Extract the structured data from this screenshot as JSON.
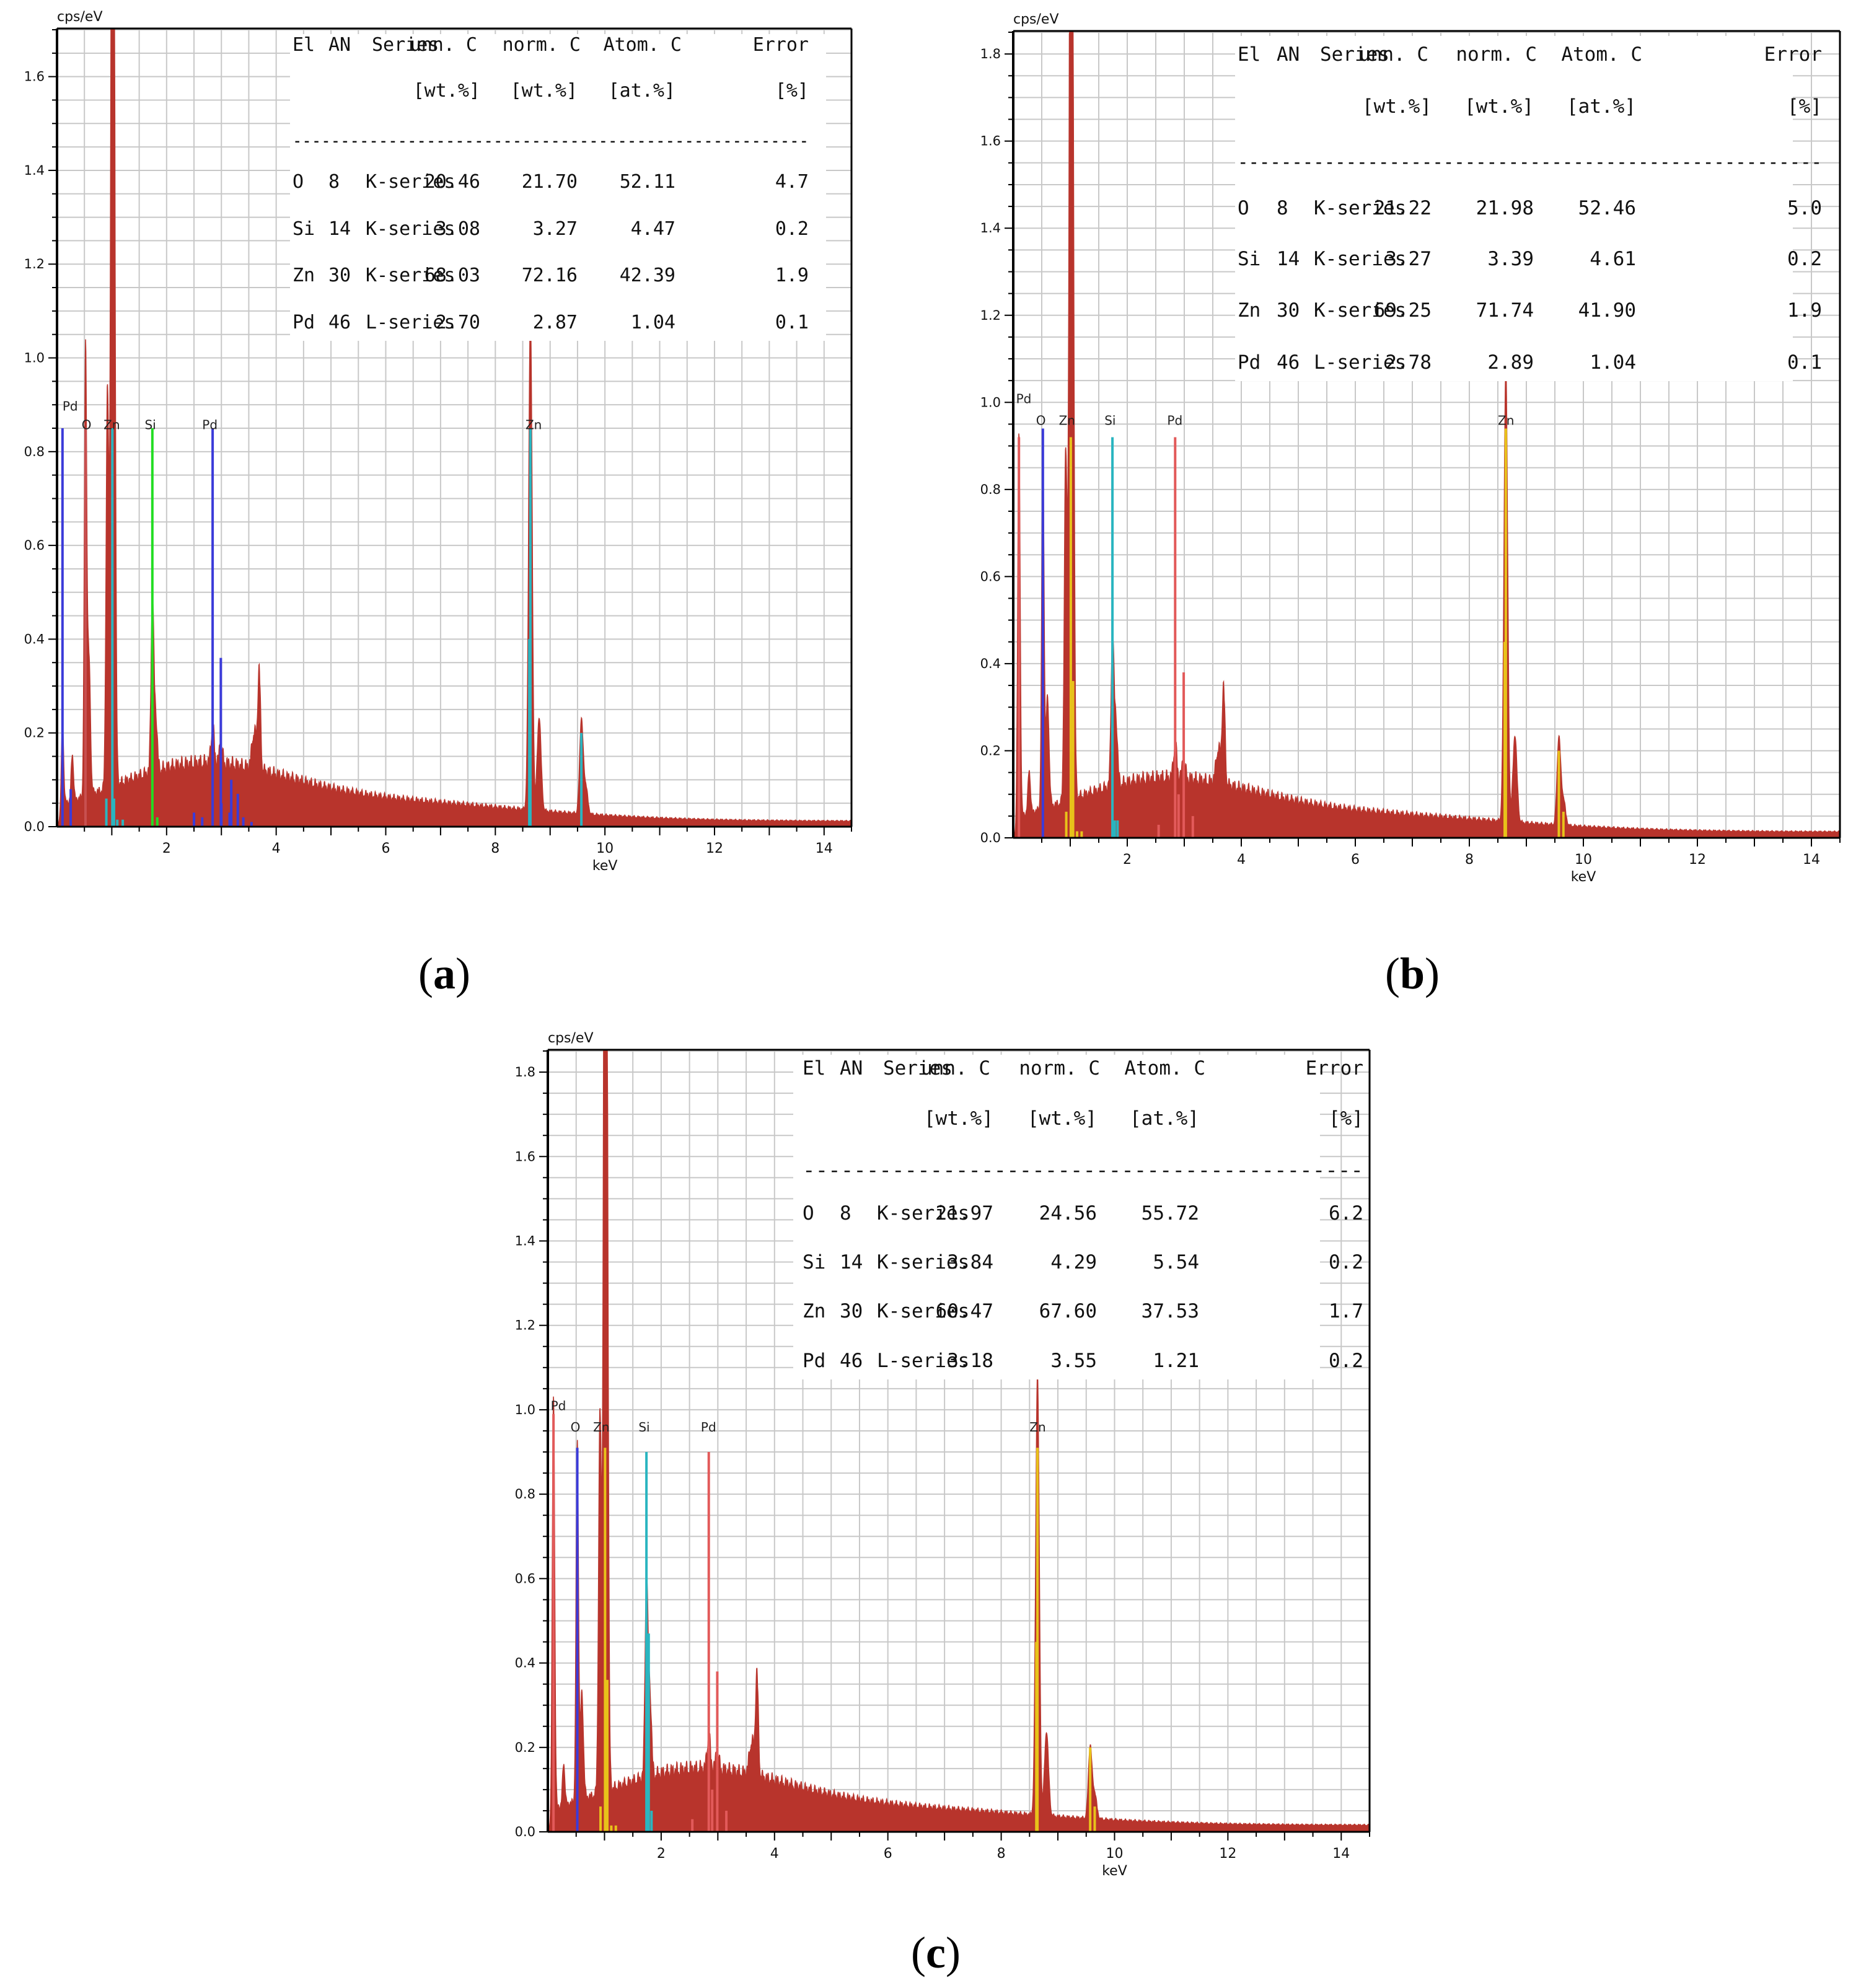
{
  "chart_data": [
    {
      "type": "line",
      "panel": "a",
      "caption_letter": "a",
      "ylabel": "cps/eV",
      "xlabel": "keV",
      "xlim": [
        0,
        14.5
      ],
      "ylim": [
        0,
        1.7
      ],
      "x_ticks": [
        2,
        4,
        6,
        8,
        10,
        12,
        14
      ],
      "y_ticks": [
        0.0,
        0.2,
        0.4,
        0.6,
        0.8,
        1.0,
        1.2,
        1.4,
        1.6
      ],
      "table": {
        "header": [
          "El",
          "AN",
          "Series",
          "unn. C",
          "norm. C",
          "Atom. C",
          "Error"
        ],
        "units": [
          "",
          "",
          "",
          "[wt.%]",
          "[wt.%]",
          "[at.%]",
          "[%]"
        ],
        "separator": "------------------------------------------------------",
        "rows": [
          [
            "O",
            "8",
            "K-series",
            "20.46",
            "21.70",
            "52.11",
            "4.7"
          ],
          [
            "Si",
            "14",
            "K-series",
            "3.08",
            "3.27",
            "4.47",
            "0.2"
          ],
          [
            "Zn",
            "30",
            "K-series",
            "68.03",
            "72.16",
            "42.39",
            "1.9"
          ],
          [
            "Pd",
            "46",
            "L-series",
            "2.70",
            "2.87",
            "1.04",
            "0.1"
          ]
        ]
      },
      "peak_labels": [
        {
          "text": "Pd",
          "x": 0.1,
          "y": 0.88
        },
        {
          "text": "O",
          "x": 0.45,
          "y": 0.84
        },
        {
          "text": "Zn",
          "x": 0.85,
          "y": 0.84
        },
        {
          "text": "Si",
          "x": 1.6,
          "y": 0.84
        },
        {
          "text": "Pd",
          "x": 2.65,
          "y": 0.84
        },
        {
          "text": "Zn",
          "x": 8.55,
          "y": 0.84
        }
      ],
      "element_markers": [
        {
          "element": "Pd",
          "color": "#3b3bd9",
          "lines": [
            [
              0.1,
              0.85
            ],
            [
              2.84,
              0.85
            ],
            [
              2.99,
              0.36
            ],
            [
              3.18,
              0.1
            ],
            [
              3.3,
              0.07
            ],
            [
              0.25,
              0.08
            ],
            [
              2.5,
              0.03
            ],
            [
              2.65,
              0.02
            ],
            [
              3.0,
              0.05
            ],
            [
              3.15,
              0.03
            ],
            [
              3.4,
              0.02
            ],
            [
              3.55,
              0.01
            ]
          ]
        },
        {
          "element": "O",
          "color": "#c85050",
          "lines": [
            [
              0.52,
              0.85
            ]
          ]
        },
        {
          "element": "Zn",
          "color": "#2ab5c0",
          "lines": [
            [
              1.01,
              0.85
            ],
            [
              0.9,
              0.06
            ],
            [
              1.04,
              0.06
            ],
            [
              8.64,
              0.85
            ],
            [
              8.62,
              0.4
            ],
            [
              9.57,
              0.2
            ],
            [
              1.1,
              0.015
            ],
            [
              1.2,
              0.015
            ]
          ]
        },
        {
          "element": "Si",
          "color": "#22dd22",
          "lines": [
            [
              1.74,
              0.85
            ],
            [
              1.83,
              0.02
            ]
          ]
        }
      ],
      "spectrum_peaks": [
        {
          "keV": 0.1,
          "height": 0.19,
          "width": 0.03
        },
        {
          "keV": 0.28,
          "height": 0.1,
          "width": 0.03
        },
        {
          "keV": 0.52,
          "height": 0.94,
          "width": 0.03
        },
        {
          "keV": 0.58,
          "height": 0.3,
          "width": 0.04
        },
        {
          "keV": 0.92,
          "height": 0.85,
          "width": 0.035
        },
        {
          "keV": 1.01,
          "height": 2.2,
          "width": 0.04
        },
        {
          "keV": 1.035,
          "height": 1.1,
          "width": 0.04
        },
        {
          "keV": 1.74,
          "height": 0.37,
          "width": 0.035
        },
        {
          "keV": 1.8,
          "height": 0.12,
          "width": 0.04
        },
        {
          "keV": 2.84,
          "height": 0.08,
          "width": 0.04
        },
        {
          "keV": 2.99,
          "height": 0.04,
          "width": 0.04
        },
        {
          "keV": 3.69,
          "height": 0.21,
          "width": 0.035
        },
        {
          "keV": 3.6,
          "height": 0.08,
          "width": 0.06
        },
        {
          "keV": 8.64,
          "height": 1.06,
          "width": 0.045
        },
        {
          "keV": 8.8,
          "height": 0.2,
          "width": 0.05
        },
        {
          "keV": 9.57,
          "height": 0.2,
          "width": 0.045
        },
        {
          "keV": 9.65,
          "height": 0.06,
          "width": 0.05
        }
      ],
      "background": {
        "amplitude": 0.1,
        "peak_keV": 2.5,
        "floor": 0.012
      },
      "colors": {
        "spectrum": "#b8342c",
        "grid": "#c8c8c8",
        "frame": "#000000"
      }
    },
    {
      "type": "line",
      "panel": "b",
      "caption_letter": "b",
      "ylabel": "cps/eV",
      "xlabel": "keV",
      "xlim": [
        0,
        14.5
      ],
      "ylim": [
        0,
        1.85
      ],
      "x_ticks": [
        2,
        4,
        6,
        8,
        10,
        12,
        14
      ],
      "y_ticks": [
        0.0,
        0.2,
        0.4,
        0.6,
        0.8,
        1.0,
        1.2,
        1.4,
        1.6,
        1.8
      ],
      "table": {
        "header": [
          "El",
          "AN",
          "Series",
          "unn. C",
          "norm. C",
          "Atom. C",
          "Error"
        ],
        "units": [
          "",
          "",
          "",
          "[wt.%]",
          "[wt.%]",
          "[at.%]",
          "[%]"
        ],
        "separator": "------------------------------------------------------",
        "rows": [
          [
            "O",
            "8",
            "K-series",
            "21.22",
            "21.98",
            "52.46",
            "5.0"
          ],
          [
            "Si",
            "14",
            "K-series",
            "3.27",
            "3.39",
            "4.61",
            "0.2"
          ],
          [
            "Zn",
            "30",
            "K-series",
            "69.25",
            "71.74",
            "41.90",
            "1.9"
          ],
          [
            "Pd",
            "46",
            "L-series",
            "2.78",
            "2.89",
            "1.04",
            "0.1"
          ]
        ]
      },
      "peak_labels": [
        {
          "text": "Pd",
          "x": 0.05,
          "y": 0.99
        },
        {
          "text": "O",
          "x": 0.4,
          "y": 0.94
        },
        {
          "text": "Zn",
          "x": 0.8,
          "y": 0.94
        },
        {
          "text": "Si",
          "x": 1.6,
          "y": 0.94
        },
        {
          "text": "Pd",
          "x": 2.7,
          "y": 0.94
        },
        {
          "text": "Zn",
          "x": 8.5,
          "y": 0.94
        }
      ],
      "element_markers": [
        {
          "element": "O",
          "color": "#3b3bd9",
          "lines": [
            [
              0.52,
              0.94
            ]
          ]
        },
        {
          "element": "Pd",
          "color": "#e25a5a",
          "lines": [
            [
              0.1,
              0.92
            ],
            [
              2.84,
              0.92
            ],
            [
              2.99,
              0.38
            ],
            [
              3.15,
              0.05
            ],
            [
              2.55,
              0.03
            ],
            [
              2.9,
              0.1
            ]
          ]
        },
        {
          "element": "Zn",
          "color": "#e8c21a",
          "lines": [
            [
              1.01,
              0.92
            ],
            [
              0.93,
              0.06
            ],
            [
              1.05,
              0.36
            ],
            [
              8.64,
              0.94
            ],
            [
              8.62,
              0.45
            ],
            [
              9.57,
              0.2
            ],
            [
              9.65,
              0.06
            ],
            [
              1.12,
              0.015
            ],
            [
              1.2,
              0.015
            ]
          ]
        },
        {
          "element": "Si",
          "color": "#2ab5c0",
          "lines": [
            [
              1.74,
              0.92
            ],
            [
              1.78,
              0.04
            ],
            [
              1.83,
              0.04
            ]
          ]
        }
      ],
      "spectrum_peaks": [
        {
          "keV": 0.1,
          "height": 0.9,
          "width": 0.03
        },
        {
          "keV": 0.28,
          "height": 0.1,
          "width": 0.03
        },
        {
          "keV": 0.52,
          "height": 0.8,
          "width": 0.03
        },
        {
          "keV": 0.6,
          "height": 0.25,
          "width": 0.04
        },
        {
          "keV": 0.92,
          "height": 0.8,
          "width": 0.035
        },
        {
          "keV": 1.01,
          "height": 2.3,
          "width": 0.04
        },
        {
          "keV": 1.035,
          "height": 1.3,
          "width": 0.04
        },
        {
          "keV": 1.74,
          "height": 0.34,
          "width": 0.035
        },
        {
          "keV": 1.8,
          "height": 0.15,
          "width": 0.04
        },
        {
          "keV": 2.84,
          "height": 0.08,
          "width": 0.04
        },
        {
          "keV": 2.99,
          "height": 0.04,
          "width": 0.04
        },
        {
          "keV": 3.69,
          "height": 0.22,
          "width": 0.035
        },
        {
          "keV": 3.6,
          "height": 0.08,
          "width": 0.06
        },
        {
          "keV": 8.64,
          "height": 1.05,
          "width": 0.045
        },
        {
          "keV": 8.8,
          "height": 0.2,
          "width": 0.05
        },
        {
          "keV": 9.57,
          "height": 0.2,
          "width": 0.045
        },
        {
          "keV": 9.65,
          "height": 0.06,
          "width": 0.05
        }
      ],
      "background": {
        "amplitude": 0.1,
        "peak_keV": 2.5,
        "floor": 0.014
      },
      "colors": {
        "spectrum": "#b8342c",
        "grid": "#c8c8c8",
        "frame": "#000000"
      }
    },
    {
      "type": "line",
      "panel": "c",
      "caption_letter": "c",
      "ylabel": "cps/eV",
      "xlabel": "keV",
      "xlim": [
        0,
        14.5
      ],
      "ylim": [
        0,
        1.85
      ],
      "x_ticks": [
        2,
        4,
        6,
        8,
        10,
        12,
        14
      ],
      "y_ticks": [
        0.0,
        0.2,
        0.4,
        0.6,
        0.8,
        1.0,
        1.2,
        1.4,
        1.6,
        1.8
      ],
      "table": {
        "header": [
          "El",
          "AN",
          "Series",
          "unn. C",
          "norm. C",
          "Atom. C",
          "Error"
        ],
        "units": [
          "",
          "",
          "",
          "[wt.%]",
          "[wt.%]",
          "[at.%]",
          "[%]"
        ],
        "separator": "--------------------------------------------",
        "rows": [
          [
            "O",
            "8",
            "K-series",
            "21.97",
            "24.56",
            "55.72",
            "6.2"
          ],
          [
            "Si",
            "14",
            "K-series",
            "3.84",
            "4.29",
            "5.54",
            "0.2"
          ],
          [
            "Zn",
            "30",
            "K-series",
            "60.47",
            "67.60",
            "37.53",
            "1.7"
          ],
          [
            "Pd",
            "46",
            "L-series",
            "3.18",
            "3.55",
            "1.21",
            "0.2"
          ]
        ]
      },
      "peak_labels": [
        {
          "text": "Pd",
          "x": 0.05,
          "y": 0.99
        },
        {
          "text": "O",
          "x": 0.4,
          "y": 0.94
        },
        {
          "text": "Zn",
          "x": 0.8,
          "y": 0.94
        },
        {
          "text": "Si",
          "x": 1.6,
          "y": 0.94
        },
        {
          "text": "Pd",
          "x": 2.7,
          "y": 0.94
        },
        {
          "text": "Zn",
          "x": 8.5,
          "y": 0.94
        }
      ],
      "element_markers": [
        {
          "element": "O",
          "color": "#3b3bd9",
          "lines": [
            [
              0.52,
              0.91
            ]
          ]
        },
        {
          "element": "Pd",
          "color": "#e25a5a",
          "lines": [
            [
              0.1,
              0.99
            ],
            [
              2.84,
              0.9
            ],
            [
              2.99,
              0.38
            ],
            [
              3.15,
              0.05
            ],
            [
              2.55,
              0.03
            ],
            [
              2.9,
              0.1
            ]
          ]
        },
        {
          "element": "Zn",
          "color": "#e8c21a",
          "lines": [
            [
              1.01,
              0.91
            ],
            [
              0.93,
              0.06
            ],
            [
              1.05,
              0.36
            ],
            [
              8.64,
              0.91
            ],
            [
              8.62,
              0.45
            ],
            [
              9.57,
              0.2
            ],
            [
              9.65,
              0.06
            ],
            [
              1.12,
              0.015
            ],
            [
              1.2,
              0.015
            ]
          ]
        },
        {
          "element": "Si",
          "color": "#2ab5c0",
          "lines": [
            [
              1.74,
              0.9
            ],
            [
              1.78,
              0.47
            ],
            [
              1.83,
              0.05
            ]
          ]
        }
      ],
      "spectrum_peaks": [
        {
          "keV": 0.1,
          "height": 1.0,
          "width": 0.03
        },
        {
          "keV": 0.28,
          "height": 0.1,
          "width": 0.03
        },
        {
          "keV": 0.52,
          "height": 0.85,
          "width": 0.03
        },
        {
          "keV": 0.6,
          "height": 0.25,
          "width": 0.04
        },
        {
          "keV": 0.92,
          "height": 0.9,
          "width": 0.035
        },
        {
          "keV": 1.01,
          "height": 2.3,
          "width": 0.04
        },
        {
          "keV": 1.035,
          "height": 1.3,
          "width": 0.04
        },
        {
          "keV": 1.74,
          "height": 0.47,
          "width": 0.035
        },
        {
          "keV": 1.8,
          "height": 0.2,
          "width": 0.04
        },
        {
          "keV": 2.84,
          "height": 0.08,
          "width": 0.04
        },
        {
          "keV": 2.99,
          "height": 0.04,
          "width": 0.04
        },
        {
          "keV": 3.69,
          "height": 0.24,
          "width": 0.035
        },
        {
          "keV": 3.6,
          "height": 0.08,
          "width": 0.06
        },
        {
          "keV": 8.64,
          "height": 1.05,
          "width": 0.045
        },
        {
          "keV": 8.8,
          "height": 0.2,
          "width": 0.05
        },
        {
          "keV": 9.57,
          "height": 0.17,
          "width": 0.045
        },
        {
          "keV": 9.65,
          "height": 0.06,
          "width": 0.05
        }
      ],
      "background": {
        "amplitude": 0.11,
        "peak_keV": 2.5,
        "floor": 0.016
      },
      "colors": {
        "spectrum": "#b8342c",
        "grid": "#c8c8c8",
        "frame": "#000000"
      }
    }
  ]
}
